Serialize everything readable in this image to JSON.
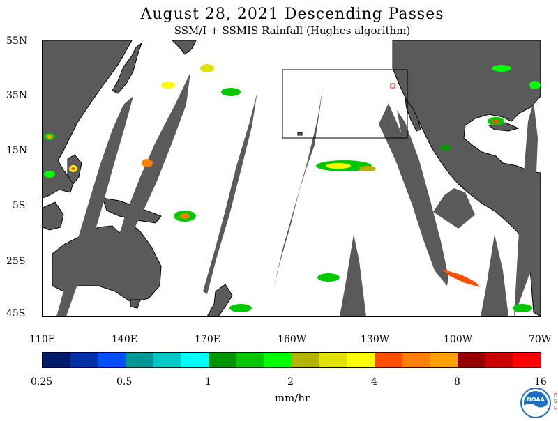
{
  "header": {
    "title": "August 28, 2021  Descending Passes",
    "subtitle": "SSM/I + SSMIS Rainfall (Hughes algorithm)"
  },
  "map": {
    "latitude_labels": [
      "55N",
      "35N",
      "15N",
      "5S",
      "25S",
      "45S"
    ],
    "longitude_labels": [
      "110E",
      "140E",
      "170E",
      "160W",
      "130W",
      "100W",
      "70W"
    ],
    "land_color": "#5a5a5a",
    "swath_gap_color": "#5a5a5a",
    "ocean_color": "#ffffff"
  },
  "colorbar": {
    "colors": [
      "#001b6b",
      "#0030a8",
      "#0050ff",
      "#009696",
      "#00c8c8",
      "#00ffff",
      "#009600",
      "#00c800",
      "#00ff00",
      "#b4b400",
      "#e1e100",
      "#ffff00",
      "#ff5000",
      "#ff8000",
      "#ffa000",
      "#960000",
      "#c80000",
      "#ff0000"
    ],
    "tick_labels": [
      "0.25",
      "0.5",
      "1",
      "2",
      "4",
      "8",
      "16"
    ],
    "units": "mm/hr"
  },
  "logo": {
    "text": "NOAA",
    "side_letters": [
      "P",
      "S",
      "L"
    ]
  }
}
